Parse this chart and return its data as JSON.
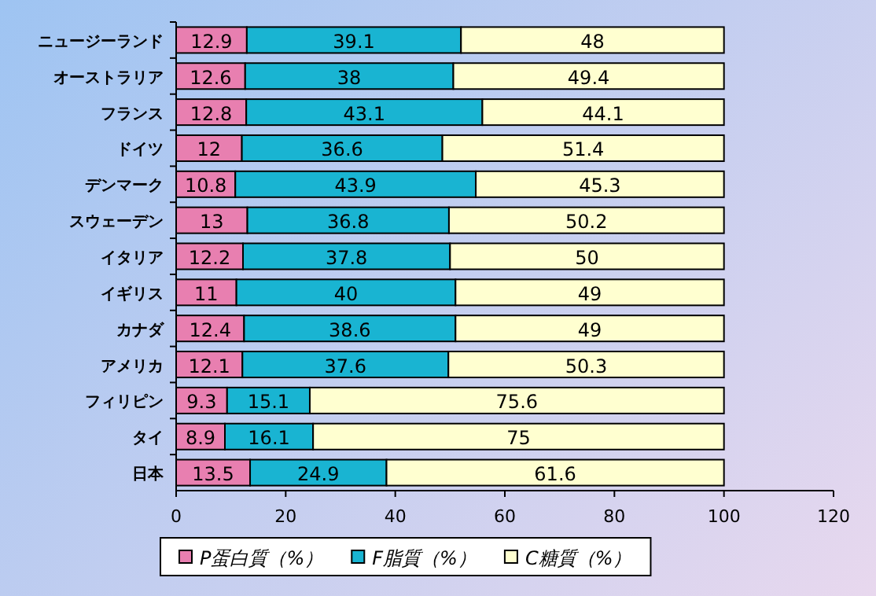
{
  "chart_data": {
    "type": "bar",
    "orientation": "horizontal",
    "stacked": true,
    "data_labels": true,
    "legend": "bottom",
    "grid": false,
    "categories": [
      "ニュージーランド",
      "オーストラリア",
      "フランス",
      "ドイツ",
      "デンマーク",
      "スウェーデン",
      "イタリア",
      "イギリス",
      "カナダ",
      "アメリカ",
      "フィリピン",
      "タイ",
      "日本"
    ],
    "xlim": [
      0,
      120
    ],
    "xticks": [
      0,
      20,
      40,
      60,
      80,
      100,
      120
    ],
    "series": [
      {
        "name": "P蛋白質（%）",
        "color": "#e87fb0",
        "values": [
          12.9,
          12.6,
          12.8,
          12,
          10.8,
          13,
          12.2,
          11,
          12.4,
          12.1,
          9.3,
          8.9,
          13.5
        ]
      },
      {
        "name": "F脂質（%）",
        "color": "#19b4d2",
        "values": [
          39.1,
          38,
          43.1,
          36.6,
          43.9,
          36.8,
          37.8,
          40,
          38.6,
          37.6,
          15.1,
          16.1,
          24.9
        ]
      },
      {
        "name": "C糖質（%）",
        "color": "#ffffd0",
        "values": [
          48,
          49.4,
          44.1,
          51.4,
          45.3,
          50.2,
          50,
          49,
          49,
          50.3,
          75.6,
          75,
          61.6
        ]
      }
    ]
  }
}
